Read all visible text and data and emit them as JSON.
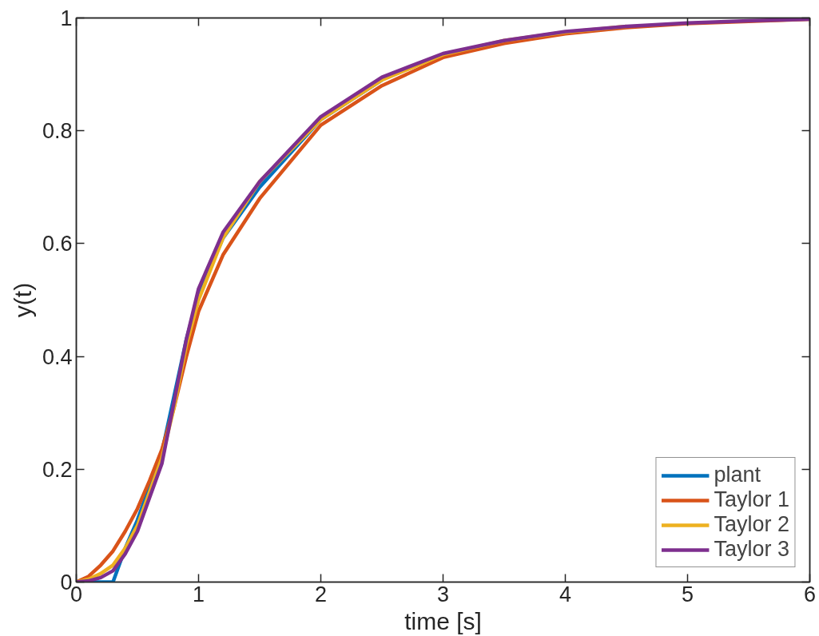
{
  "chart_data": {
    "type": "line",
    "xlabel": "time [s]",
    "ylabel": "y(t)",
    "x": [
      0,
      0.1,
      0.2,
      0.3,
      0.4,
      0.5,
      0.6,
      0.7,
      0.8,
      0.9,
      1.0,
      1.2,
      1.5,
      2,
      2.5,
      3,
      3.5,
      4,
      4.5,
      5,
      5.5,
      6
    ],
    "series": [
      {
        "name": "plant",
        "color": "#0072bd",
        "values": [
          0,
          0,
          0,
          0,
          0.06,
          0.11,
          0.17,
          0.23,
          0.33,
          0.43,
          0.51,
          0.61,
          0.7,
          0.82,
          0.89,
          null,
          null,
          null,
          null,
          null,
          null,
          null
        ]
      },
      {
        "name": "Taylor 1",
        "color": "#d95319",
        "values": [
          0,
          0.01,
          0.03,
          0.055,
          0.09,
          0.13,
          0.18,
          0.235,
          0.31,
          0.4,
          0.48,
          0.58,
          0.68,
          0.81,
          0.88,
          0.93,
          0.955,
          0.972,
          0.983,
          0.99,
          0.994,
          0.998
        ]
      },
      {
        "name": "Taylor 2",
        "color": "#edb120",
        "values": [
          0,
          0.005,
          0.015,
          0.03,
          0.06,
          0.1,
          0.16,
          0.22,
          0.31,
          0.42,
          0.5,
          0.61,
          0.71,
          0.82,
          0.89,
          0.935,
          0.96,
          0.975,
          0.985,
          null,
          null,
          null
        ]
      },
      {
        "name": "Taylor 3",
        "color": "#7e2f8e",
        "values": [
          0,
          0.002,
          0.008,
          0.02,
          0.05,
          0.09,
          0.15,
          0.21,
          0.32,
          0.43,
          0.52,
          0.62,
          0.71,
          0.825,
          0.895,
          0.937,
          0.96,
          0.976,
          0.985,
          0.991,
          0.995,
          0.998
        ]
      }
    ],
    "xlim": [
      0,
      6
    ],
    "ylim": [
      0,
      1
    ],
    "xticks": [
      0,
      1,
      2,
      3,
      4,
      5,
      6
    ],
    "yticks": [
      0,
      0.2,
      0.4,
      0.6,
      0.8,
      1
    ],
    "grid": false,
    "legend": "bottom right",
    "line_style": "solid",
    "marker": "none"
  }
}
